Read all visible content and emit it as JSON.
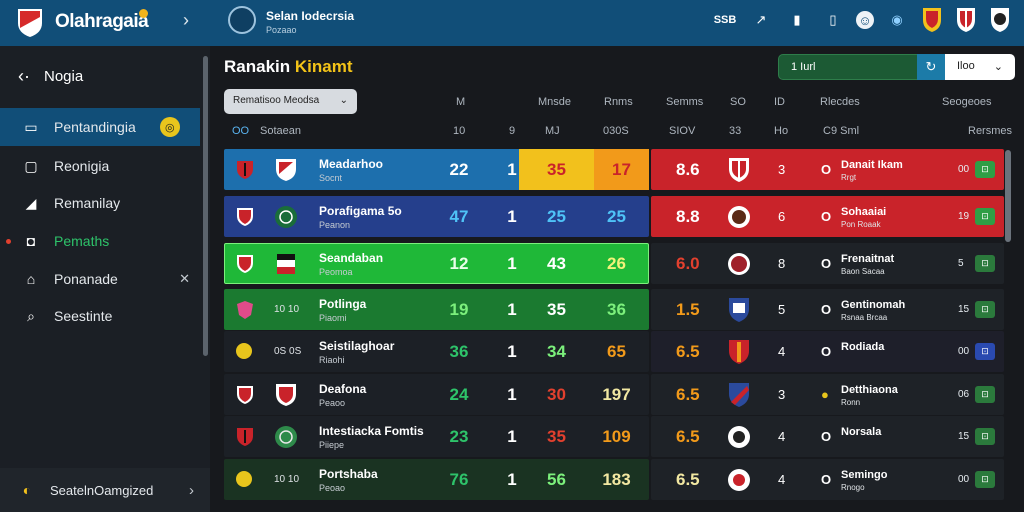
{
  "topbar": {
    "app_title": "Olahragaia",
    "league_title": "Selan Iodecrsia",
    "league_sub": "Pozaao",
    "icons": [
      "ssb-icon",
      "stats-icon",
      "bars-icon",
      "phone-icon",
      "face-icon",
      "globe-icon",
      "flag-icon",
      "shield-icon",
      "club-icon"
    ],
    "ssb_label": "SSB"
  },
  "sidebar": {
    "back_label": "Nogia",
    "items": [
      {
        "label": "Pentandingia",
        "icon": "ticket-icon"
      },
      {
        "label": "Reonigia",
        "icon": "monitor-icon"
      },
      {
        "label": "Remanilay",
        "icon": "megaphone-icon"
      },
      {
        "label": "Pemaths",
        "icon": "shield-icon"
      },
      {
        "label": "Ponanade",
        "icon": "home-icon"
      },
      {
        "label": "Seestinte",
        "icon": "search-icon"
      }
    ],
    "bottom_label": "SeatelnOamgized"
  },
  "main": {
    "title_white": "Ranakin",
    "title_accent": "Kinamt",
    "search_label": "1 Iurl",
    "select_label": "Iloo",
    "filter_label": "Rematisoo Meodsa",
    "headers": [
      "M",
      "Mnsde",
      "Rnms",
      "Semms",
      "SO",
      "ID",
      "Rlecdes",
      "Seogeoes"
    ],
    "subheaders": [
      "OO",
      "Sotaean",
      "10",
      "9",
      "MJ",
      "030S",
      "SIOV",
      "33",
      "Ho",
      "C9 Sml",
      "Rersmes"
    ],
    "colors": {
      "blue_row": "#1d6fad",
      "navy_row": "#253f8c",
      "green_row": "#1fb838",
      "dark_green_row": "#1b7a30",
      "yellow_cell": "#f2c11c",
      "orange_cell": "#f29a1a",
      "red_right": "#c9232a"
    },
    "rows": [
      {
        "team": "Meadarhoo",
        "sub": "Socnt",
        "a": "22",
        "b": "1",
        "c": "35",
        "d": "17",
        "rating": "8.6",
        "pos": "3",
        "opp": "Danait Ikam",
        "opp_sub": "Rrgt",
        "trend": "00"
      },
      {
        "team": "Porafigama 5o",
        "sub": "Peanon",
        "a": "47",
        "b": "1",
        "c": "25",
        "d": "25",
        "rating": "8.8",
        "pos": "6",
        "opp": "Sohaaiai",
        "opp_sub": "Pon Roaak",
        "trend": "19"
      },
      {
        "team": "Seandaban",
        "sub": "Peomoa",
        "a": "12",
        "b": "1",
        "c": "43",
        "d": "26",
        "rating": "6.0",
        "pos": "8",
        "opp": "Frenaitnat",
        "opp_sub": "Baon Sacaa",
        "trend": "5"
      },
      {
        "team": "Potlinga",
        "sub": "Piaomi",
        "code": "10 10",
        "a": "19",
        "b": "1",
        "c": "35",
        "d": "36",
        "rating": "1.5",
        "pos": "5",
        "opp": "Gentinomah",
        "opp_sub": "Rsnaa Brcaa",
        "trend": "15"
      },
      {
        "team": "Seistilaghoar",
        "sub": "Riaohi",
        "code": "0S 0S",
        "a": "36",
        "b": "1",
        "c": "34",
        "d": "65",
        "rating": "6.5",
        "pos": "4",
        "opp": "Rodiada",
        "opp_sub": "",
        "trend": "00"
      },
      {
        "team": "Deafona",
        "sub": "Peaoo",
        "a": "24",
        "b": "1",
        "c": "30",
        "d": "197",
        "rating": "6.5",
        "pos": "3",
        "opp": "Detthiaona",
        "opp_sub": "Ronn",
        "trend": "06"
      },
      {
        "team": "Intestiacka Fomtis",
        "sub": "Piiepe",
        "a": "23",
        "b": "1",
        "c": "35",
        "d": "109",
        "rating": "6.5",
        "pos": "4",
        "opp": "Norsala",
        "opp_sub": "",
        "trend": "15"
      },
      {
        "team": "Portshaba",
        "sub": "Peoao",
        "code": "10 10",
        "a": "76",
        "b": "1",
        "c": "56",
        "d": "183",
        "rating": "6.5",
        "pos": "4",
        "opp": "Semingo",
        "opp_sub": "Rnogo",
        "trend": "00"
      }
    ]
  }
}
